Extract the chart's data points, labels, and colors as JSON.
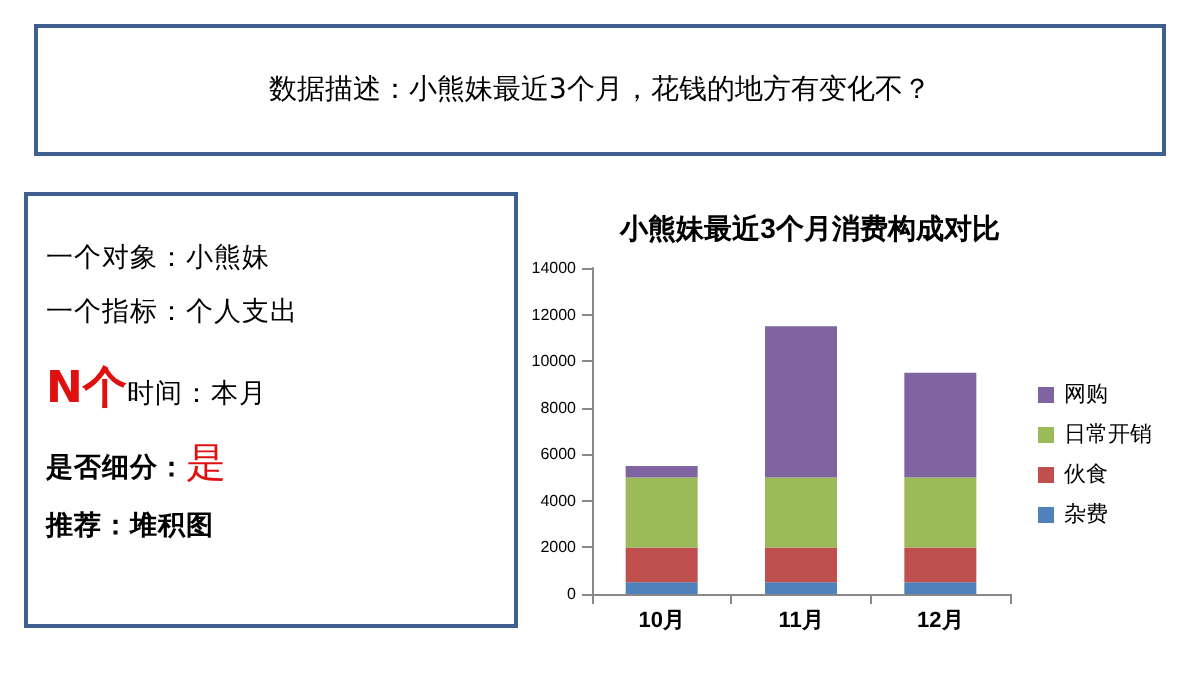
{
  "chart_data": {
    "type": "bar",
    "title": "小熊妹最近3个月消费构成对比",
    "categories": [
      "10月",
      "11月",
      "12月"
    ],
    "stacked": true,
    "series": [
      {
        "name": "杂费",
        "color": "#4f81bd",
        "values": [
          500,
          500,
          500
        ]
      },
      {
        "name": "伙食",
        "color": "#c0504d",
        "values": [
          1500,
          1500,
          1500
        ]
      },
      {
        "name": "日常开销",
        "color": "#9bbb59",
        "values": [
          3000,
          3000,
          3000
        ]
      },
      {
        "name": "网购",
        "color": "#8064a2",
        "values": [
          500,
          6500,
          4500
        ]
      }
    ],
    "ylim": [
      0,
      14000
    ],
    "yticks": [
      0,
      2000,
      4000,
      6000,
      8000,
      10000,
      12000,
      14000
    ],
    "grid": false,
    "legend": "right",
    "annotations": [
      "数据描述：小熊妹最近3个月，花钱的地方有变化不？",
      "一个对象：小熊妹",
      "一个指标：个人支出",
      "N个时间：本月",
      "是否细分：是",
      "推荐：堆积图"
    ]
  }
}
